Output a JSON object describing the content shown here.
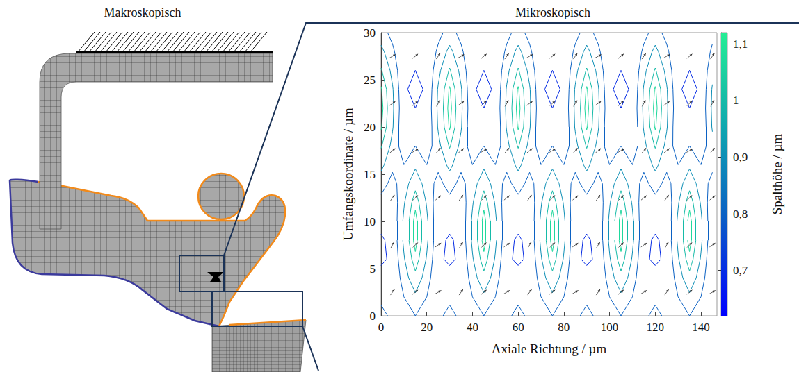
{
  "titles": [
    "Makroskopisch",
    "Mikroskopisch"
  ],
  "chart_data": {
    "type": "contour",
    "xlabel": "Axiale Richtung / µm",
    "ylabel": "Umfangskoordinate / µm",
    "xlim": [
      0,
      147
    ],
    "xticks": [
      0,
      20,
      40,
      60,
      80,
      100,
      120,
      140
    ],
    "ylim": [
      0,
      30
    ],
    "yticks": [
      0,
      5,
      10,
      15,
      20,
      25,
      30
    ],
    "grid": false,
    "x": [
      0,
      5,
      10,
      15,
      20,
      25,
      30,
      35,
      40,
      45,
      50,
      55,
      60,
      65,
      70,
      75,
      80,
      85,
      90,
      95,
      100,
      105,
      110,
      115,
      120,
      125,
      130,
      135,
      140,
      145
    ],
    "y": [
      0,
      2,
      4,
      6,
      8,
      10,
      12,
      14,
      16,
      18,
      20,
      22,
      24,
      26,
      28,
      30
    ],
    "z": [
      [
        0.84,
        0.77,
        0.74,
        0.8,
        0.74,
        0.77,
        0.84,
        0.77,
        0.74,
        0.8,
        0.74,
        0.77,
        0.84,
        0.77,
        0.74,
        0.8,
        0.74,
        0.77,
        0.84,
        0.77,
        0.74,
        0.8,
        0.74,
        0.77,
        0.84,
        0.77,
        0.74,
        0.8,
        0.74,
        0.77
      ],
      [
        0.77,
        0.73,
        0.8,
        0.88,
        0.8,
        0.73,
        0.77,
        0.73,
        0.8,
        0.88,
        0.8,
        0.73,
        0.77,
        0.73,
        0.8,
        0.88,
        0.8,
        0.73,
        0.77,
        0.73,
        0.8,
        0.88,
        0.8,
        0.73,
        0.77,
        0.73,
        0.8,
        0.88,
        0.8,
        0.73
      ],
      [
        0.72,
        0.7,
        0.85,
        0.97,
        0.85,
        0.7,
        0.72,
        0.7,
        0.85,
        0.97,
        0.85,
        0.7,
        0.72,
        0.7,
        0.85,
        0.97,
        0.85,
        0.7,
        0.72,
        0.7,
        0.85,
        0.97,
        0.85,
        0.7,
        0.72,
        0.7,
        0.85,
        0.97,
        0.85,
        0.7
      ],
      [
        0.69,
        0.71,
        0.89,
        1.05,
        0.89,
        0.71,
        0.69,
        0.71,
        0.89,
        1.05,
        0.89,
        0.71,
        0.69,
        0.71,
        0.89,
        1.05,
        0.89,
        0.71,
        0.69,
        0.71,
        0.89,
        1.05,
        0.89,
        0.71,
        0.69,
        0.71,
        0.89,
        1.05,
        0.89,
        0.71
      ],
      [
        0.69,
        0.72,
        0.92,
        1.1,
        0.92,
        0.72,
        0.69,
        0.72,
        0.92,
        1.1,
        0.92,
        0.72,
        0.69,
        0.72,
        0.92,
        1.1,
        0.92,
        0.72,
        0.69,
        0.72,
        0.92,
        1.1,
        0.92,
        0.72,
        0.69,
        0.72,
        0.92,
        1.1,
        0.92,
        0.72
      ],
      [
        0.72,
        0.72,
        0.92,
        1.1,
        0.92,
        0.72,
        0.72,
        0.72,
        0.92,
        1.1,
        0.92,
        0.72,
        0.72,
        0.72,
        0.92,
        1.1,
        0.92,
        0.72,
        0.72,
        0.72,
        0.92,
        1.1,
        0.92,
        0.72,
        0.72,
        0.72,
        0.92,
        1.1,
        0.92,
        0.72
      ],
      [
        0.77,
        0.73,
        0.89,
        1.05,
        0.89,
        0.73,
        0.77,
        0.73,
        0.89,
        1.05,
        0.89,
        0.73,
        0.77,
        0.73,
        0.89,
        1.05,
        0.89,
        0.73,
        0.77,
        0.73,
        0.89,
        1.05,
        0.89,
        0.73,
        0.77,
        0.73,
        0.89,
        1.05,
        0.89,
        0.73
      ],
      [
        0.84,
        0.77,
        0.85,
        0.97,
        0.85,
        0.77,
        0.84,
        0.77,
        0.85,
        0.97,
        0.85,
        0.77,
        0.84,
        0.77,
        0.85,
        0.97,
        0.85,
        0.77,
        0.84,
        0.77,
        0.85,
        0.97,
        0.85,
        0.77,
        0.84,
        0.77,
        0.85,
        0.97,
        0.85,
        0.77
      ],
      [
        0.93,
        0.82,
        0.8,
        0.88,
        0.8,
        0.82,
        0.93,
        0.82,
        0.8,
        0.88,
        0.8,
        0.82,
        0.93,
        0.82,
        0.8,
        0.88,
        0.8,
        0.82,
        0.93,
        0.82,
        0.8,
        0.88,
        0.8,
        0.82,
        0.93,
        0.82,
        0.8,
        0.88,
        0.8,
        0.82
      ],
      [
        1.01,
        0.87,
        0.74,
        0.8,
        0.74,
        0.87,
        1.01,
        0.87,
        0.74,
        0.8,
        0.74,
        0.87,
        1.01,
        0.87,
        0.74,
        0.8,
        0.74,
        0.87,
        1.01,
        0.87,
        0.74,
        0.8,
        0.74,
        0.87,
        1.01,
        0.87,
        0.74,
        0.8,
        0.74,
        0.87
      ],
      [
        1.08,
        0.91,
        0.71,
        0.74,
        0.71,
        0.91,
        1.08,
        0.91,
        0.71,
        0.74,
        0.71,
        0.91,
        1.08,
        0.91,
        0.71,
        0.74,
        0.71,
        0.91,
        1.08,
        0.91,
        0.71,
        0.74,
        0.71,
        0.91,
        1.08,
        0.91,
        0.71,
        0.74,
        0.71,
        0.91
      ],
      [
        1.1,
        0.92,
        0.72,
        0.7,
        0.72,
        0.92,
        1.1,
        0.92,
        0.72,
        0.7,
        0.72,
        0.92,
        1.1,
        0.92,
        0.72,
        0.7,
        0.72,
        0.92,
        1.1,
        0.92,
        0.72,
        0.7,
        0.72,
        0.92,
        1.1,
        0.92,
        0.72,
        0.7,
        0.72,
        0.92
      ],
      [
        1.08,
        0.91,
        0.71,
        0.68,
        0.71,
        0.91,
        1.08,
        0.91,
        0.71,
        0.68,
        0.71,
        0.91,
        1.08,
        0.91,
        0.71,
        0.68,
        0.71,
        0.91,
        1.08,
        0.91,
        0.71,
        0.68,
        0.71,
        0.91,
        1.08,
        0.91,
        0.71,
        0.68,
        0.71,
        0.91
      ],
      [
        1.01,
        0.87,
        0.71,
        0.7,
        0.71,
        0.87,
        1.01,
        0.87,
        0.71,
        0.7,
        0.71,
        0.87,
        1.01,
        0.87,
        0.71,
        0.7,
        0.71,
        0.87,
        1.01,
        0.87,
        0.71,
        0.7,
        0.71,
        0.87,
        1.01,
        0.87,
        0.71,
        0.7,
        0.71,
        0.87
      ],
      [
        0.93,
        0.82,
        0.71,
        0.74,
        0.71,
        0.82,
        0.93,
        0.82,
        0.71,
        0.74,
        0.71,
        0.82,
        0.93,
        0.82,
        0.71,
        0.74,
        0.71,
        0.82,
        0.93,
        0.82,
        0.71,
        0.74,
        0.71,
        0.82,
        0.93,
        0.82,
        0.71,
        0.74,
        0.71,
        0.82
      ],
      [
        0.84,
        0.77,
        0.74,
        0.8,
        0.74,
        0.77,
        0.84,
        0.77,
        0.74,
        0.8,
        0.74,
        0.77,
        0.84,
        0.77,
        0.74,
        0.8,
        0.74,
        0.77,
        0.84,
        0.77,
        0.74,
        0.8,
        0.74,
        0.77,
        0.84,
        0.77,
        0.74,
        0.8,
        0.74,
        0.77
      ]
    ],
    "levels": [
      0.7,
      0.8,
      0.9,
      1,
      1.07
    ],
    "colorbar": {
      "label": "Spalthöhe / µm",
      "lim": [
        0.62,
        1.12
      ],
      "ticks": [
        {
          "value": 0.7,
          "label": "0,7"
        },
        {
          "value": 0.8,
          "label": "0,8"
        },
        {
          "value": 0.9,
          "label": "0,9"
        },
        1,
        {
          "value": 1.1,
          "label": "1,1"
        }
      ]
    },
    "arrows": {
      "x": [
        5,
        15,
        25,
        35,
        45,
        55,
        65,
        75,
        85,
        95,
        105,
        115,
        125,
        135,
        145
      ],
      "y": [
        2.5,
        7.5,
        12.5,
        17.5,
        22.5,
        27.5
      ],
      "angle_deg": [
        [
          55,
          40,
          30,
          55,
          40,
          30,
          55,
          40,
          30,
          55,
          40,
          30,
          55,
          40,
          30
        ],
        [
          60,
          45,
          35,
          60,
          45,
          35,
          60,
          45,
          35,
          60,
          45,
          35,
          60,
          45,
          35
        ],
        [
          55,
          45,
          40,
          55,
          45,
          40,
          55,
          45,
          40,
          55,
          45,
          40,
          55,
          45,
          40
        ],
        [
          40,
          30,
          50,
          40,
          30,
          50,
          40,
          30,
          50,
          40,
          30,
          50,
          40,
          30,
          50
        ],
        [
          35,
          45,
          60,
          35,
          45,
          60,
          35,
          45,
          60,
          35,
          45,
          60,
          35,
          45,
          60
        ],
        [
          30,
          40,
          55,
          30,
          40,
          55,
          30,
          40,
          55,
          30,
          40,
          55,
          30,
          40,
          55
        ]
      ]
    }
  }
}
